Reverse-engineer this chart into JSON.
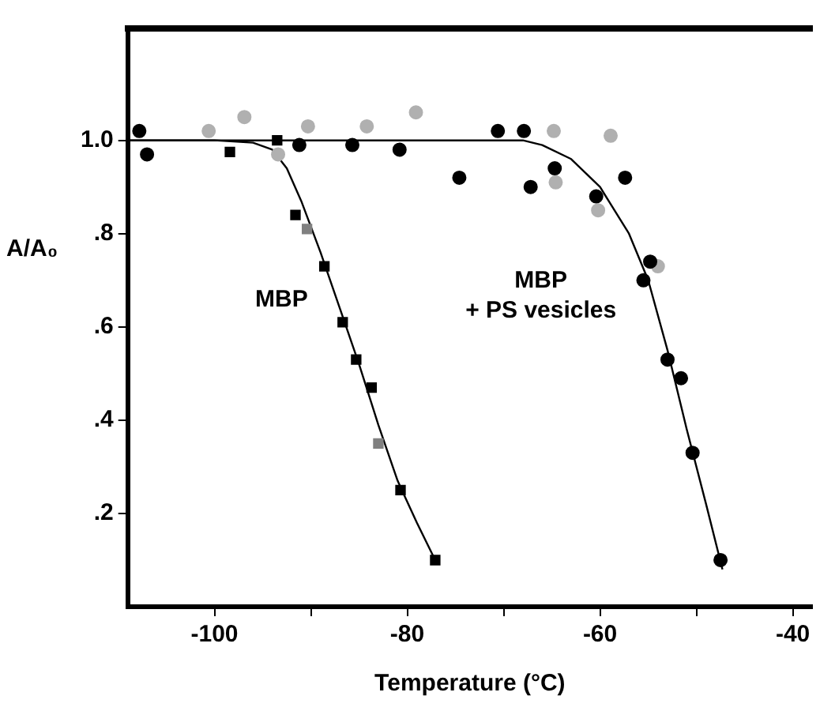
{
  "chart_data": {
    "type": "scatter",
    "xlabel": "Temperature (°C)",
    "ylabel": "A/A₀",
    "xlim": [
      -109,
      -38
    ],
    "ylim": [
      0,
      1.24
    ],
    "xticks": [
      -100,
      {
        "value": -90,
        "label": null
      },
      -80,
      {
        "value": -70,
        "label": null
      },
      -60,
      {
        "value": -50,
        "label": null
      },
      -40
    ],
    "yticks": [
      {
        "value": 0.2,
        "label": ".2"
      },
      {
        "value": 0.4,
        "label": ".4"
      },
      {
        "value": 0.6,
        "label": ".6"
      },
      {
        "value": 0.8,
        "label": ".8"
      },
      {
        "value": 1.0,
        "label": "1.0"
      }
    ],
    "grid": false,
    "legend": false,
    "series": [
      {
        "marker": "circle",
        "color": "#000000",
        "x": [
          -107.8,
          -107.0,
          -91.2,
          -85.7,
          -80.8,
          -74.6,
          -70.6,
          -67.9,
          -64.7,
          -67.2,
          -60.4,
          -57.4,
          -54.8,
          -55.5,
          -53.0,
          -51.6,
          -50.4,
          -47.5
        ],
        "values": [
          1.02,
          0.97,
          0.99,
          0.99,
          0.98,
          0.92,
          1.02,
          1.02,
          0.94,
          0.9,
          0.88,
          0.92,
          0.74,
          0.7,
          0.53,
          0.49,
          0.33,
          0.1
        ]
      },
      {
        "marker": "circle",
        "color": "#b0b0b0",
        "x": [
          -100.6,
          -96.9,
          -93.4,
          -90.3,
          -84.2,
          -79.1,
          -64.8,
          -58.9,
          -64.6,
          -60.2,
          -54.0
        ],
        "values": [
          1.02,
          1.05,
          0.97,
          1.03,
          1.03,
          1.06,
          1.02,
          1.01,
          0.91,
          0.85,
          0.73
        ]
      },
      {
        "marker": "square",
        "color": "#000000",
        "x": [
          -98.4,
          -93.5,
          -91.6,
          -88.6,
          -86.7,
          -85.3,
          -83.7,
          -80.7,
          -77.1
        ],
        "values": [
          0.975,
          1.0,
          0.84,
          0.73,
          0.61,
          0.53,
          0.47,
          0.25,
          0.1
        ]
      },
      {
        "marker": "square",
        "color": "#808080",
        "x": [
          -90.4,
          -83.0
        ],
        "values": [
          0.81,
          0.35
        ]
      },
      {
        "type": "line",
        "name": "MBP",
        "marker": "none",
        "color": "#000000",
        "x": [
          -109,
          -100,
          -96,
          -94,
          -92.5,
          -91,
          -89,
          -87,
          -85,
          -83,
          -81,
          -79,
          -77.1
        ],
        "values": [
          1.0,
          1.0,
          0.995,
          0.98,
          0.94,
          0.87,
          0.76,
          0.64,
          0.52,
          0.39,
          0.27,
          0.18,
          0.1
        ]
      },
      {
        "type": "line",
        "name": "MBP\n+ PS vesicles",
        "marker": "none",
        "color": "#000000",
        "x": [
          -109,
          -70,
          -68,
          -66,
          -63,
          -60,
          -57,
          -55,
          -53,
          -51,
          -49,
          -47.3
        ],
        "values": [
          1.0,
          1.0,
          1.0,
          0.99,
          0.96,
          0.9,
          0.8,
          0.7,
          0.55,
          0.38,
          0.22,
          0.08
        ]
      }
    ]
  }
}
